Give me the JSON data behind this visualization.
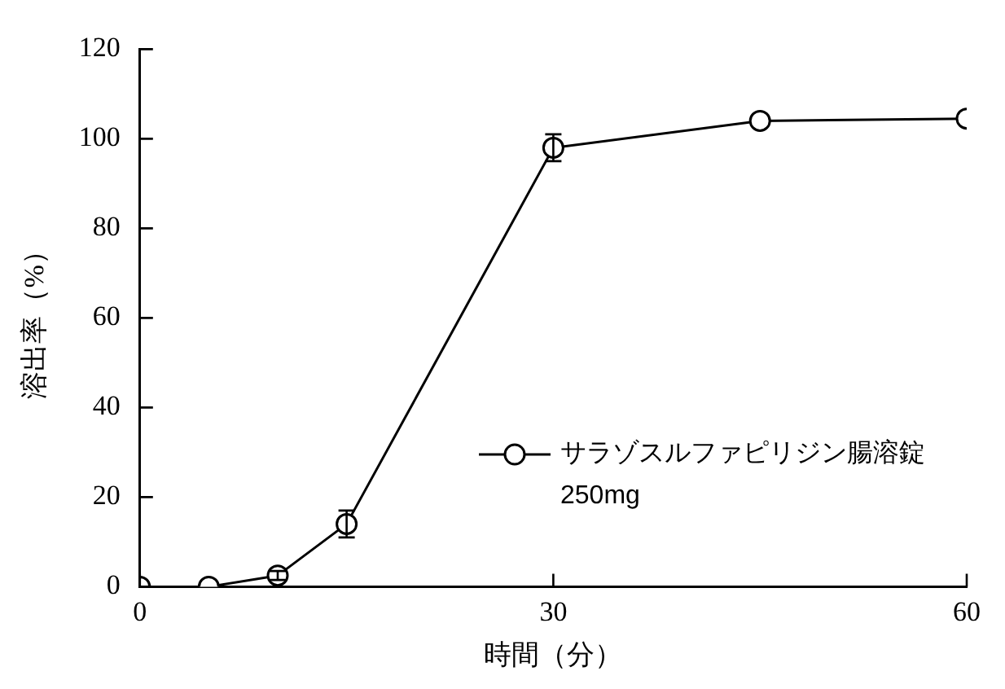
{
  "chart_data": {
    "type": "line",
    "xlabel": "時間（分）",
    "ylabel": "溶出率（%）",
    "x": [
      0,
      5,
      10,
      15,
      30,
      45,
      60
    ],
    "series": [
      {
        "name": "サラゾスルファピリジン腸溶錠\n250mg",
        "color": "#000000",
        "values": [
          0,
          0,
          2.5,
          14,
          98,
          104,
          104.5
        ],
        "errors": [
          null,
          null,
          1,
          3,
          3,
          null,
          null
        ]
      }
    ],
    "xlim": [
      0,
      60
    ],
    "xticks": [
      0,
      30,
      60
    ],
    "ylim": [
      0,
      120
    ],
    "yticks": [
      0,
      20,
      40,
      60,
      80,
      100,
      120
    ],
    "grid": false,
    "legend": "bottom right",
    "marker": "circle",
    "line_style": "solid"
  }
}
